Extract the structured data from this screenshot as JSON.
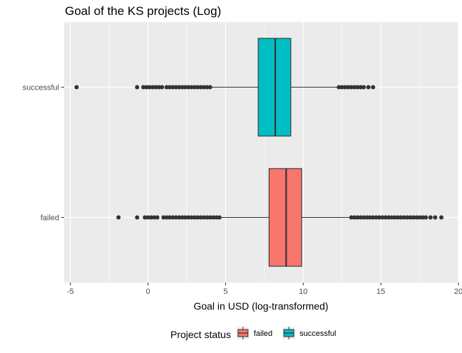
{
  "chart_data": {
    "type": "boxplot",
    "orientation": "horizontal",
    "title": "Goal of the KS projects (Log)",
    "xlabel": "Goal in USD (log-transformed)",
    "ylabel": "",
    "xlim": [
      -5.4,
      20.0
    ],
    "x_ticks": [
      -5,
      0,
      5,
      10,
      15,
      20
    ],
    "x_tick_labels": [
      "-5",
      "0",
      "5",
      "10",
      "15",
      "20"
    ],
    "categories": [
      "successful",
      "failed"
    ],
    "grid": true,
    "legend_title": "Project status",
    "legend_position": "bottom",
    "series": [
      {
        "category": "successful",
        "color": "#00BFC4",
        "whisker_low": 4.1,
        "q1": 7.1,
        "median": 8.2,
        "q3": 9.2,
        "whisker_high": 12.2,
        "outliers": [
          -4.6,
          -0.7,
          -0.3,
          -0.1,
          0.1,
          0.3,
          0.5,
          0.7,
          0.9,
          1.2,
          1.4,
          1.6,
          1.8,
          2.0,
          2.2,
          2.4,
          2.6,
          2.8,
          3.0,
          3.2,
          3.4,
          3.6,
          3.8,
          4.0,
          12.3,
          12.5,
          12.7,
          12.9,
          13.1,
          13.3,
          13.5,
          13.7,
          13.9,
          14.2,
          14.5
        ]
      },
      {
        "category": "failed",
        "color": "#F8766D",
        "whisker_low": 4.7,
        "q1": 7.8,
        "median": 8.9,
        "q3": 9.9,
        "whisker_high": 13.0,
        "outliers": [
          -1.9,
          -0.7,
          -0.2,
          0.0,
          0.2,
          0.4,
          0.6,
          1.0,
          1.2,
          1.4,
          1.6,
          1.8,
          2.0,
          2.2,
          2.4,
          2.6,
          2.8,
          3.0,
          3.2,
          3.4,
          3.6,
          3.8,
          4.0,
          4.2,
          4.4,
          4.6,
          13.1,
          13.3,
          13.5,
          13.7,
          13.9,
          14.1,
          14.3,
          14.5,
          14.7,
          14.9,
          15.1,
          15.3,
          15.5,
          15.7,
          15.9,
          16.1,
          16.3,
          16.5,
          16.7,
          16.9,
          17.1,
          17.3,
          17.5,
          17.7,
          17.9,
          18.2,
          18.5,
          18.9
        ]
      }
    ]
  },
  "legend": {
    "title": "Project status",
    "items": [
      {
        "label": "failed",
        "color": "#F8766D"
      },
      {
        "label": "successful",
        "color": "#00BFC4"
      }
    ]
  },
  "colors": {
    "panel_background": "#EBEBEB",
    "grid_major": "#FFFFFF",
    "box_outline": "#333333",
    "point": "#333333"
  }
}
